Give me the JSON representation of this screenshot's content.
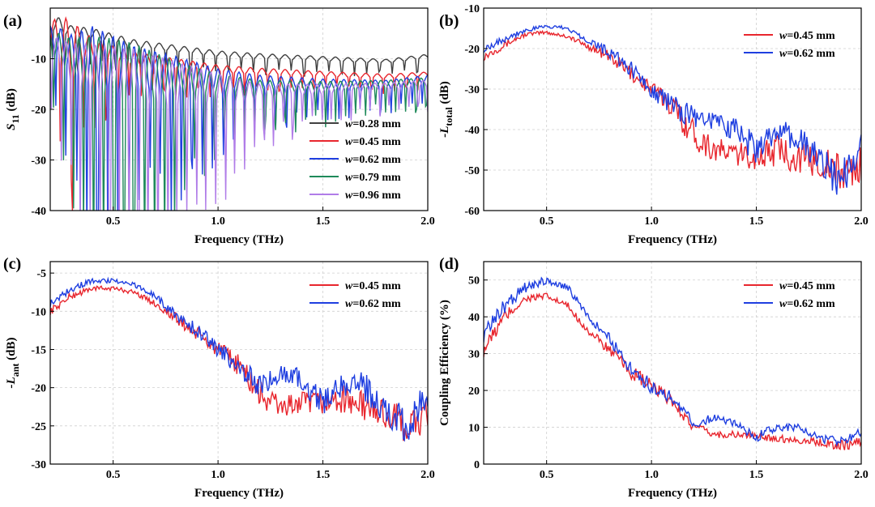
{
  "chart_data": [
    {
      "panel": "(a)",
      "type": "line",
      "xlabel": "Frequency (THz)",
      "ylabel_main": "S",
      "ylabel_sub": "11",
      "ylabel_unit": " (dB)",
      "xlim": [
        0.2,
        2.0
      ],
      "ylim": [
        -40,
        0
      ],
      "xticks": [
        0.5,
        1.0,
        1.5,
        2.0
      ],
      "xtick_labels": [
        "0.5",
        "1.0",
        "1.5",
        "2.0"
      ],
      "yticks": [
        -40,
        -30,
        -20,
        -10
      ],
      "ytick_labels": [
        "-40",
        "-30",
        "-20",
        "-10"
      ],
      "legend_position": "bottom-right",
      "grid": true,
      "series": [
        {
          "name": "=0.28 mm",
          "color": "#404040",
          "x": [
            0.2,
            0.25,
            0.3,
            0.4,
            0.5,
            0.6,
            0.8,
            1.0,
            1.2,
            1.5,
            1.8,
            2.0
          ],
          "y": [
            -3,
            -3.5,
            -4.5,
            -5,
            -6,
            -7,
            -8,
            -9,
            -9.5,
            -10,
            -10.5,
            -9.5
          ],
          "osc_amp": [
            6,
            6,
            4,
            4,
            3.5,
            3,
            2.5,
            2.2,
            2,
            1.8,
            1.5,
            1.5
          ],
          "osc_period": 0.06
        },
        {
          "name": "=0.45 mm",
          "color": "#e8262e",
          "x": [
            0.2,
            0.25,
            0.3,
            0.4,
            0.5,
            0.6,
            0.8,
            1.0,
            1.2,
            1.5,
            1.8,
            2.0
          ],
          "y": [
            -5,
            -6,
            -7,
            -8,
            -9,
            -10,
            -11,
            -12,
            -12.5,
            -13,
            -13.5,
            -13
          ],
          "osc_amp": [
            9,
            18,
            18,
            8,
            6,
            5,
            4,
            3,
            2.5,
            2,
            1.8,
            1.5
          ],
          "osc_period": 0.055
        },
        {
          "name": "=0.62 mm",
          "color": "#1f3fe0",
          "x": [
            0.2,
            0.25,
            0.3,
            0.4,
            0.5,
            0.6,
            0.8,
            1.0,
            1.2,
            1.5,
            1.8,
            2.0
          ],
          "y": [
            -6,
            -7,
            -9,
            -10,
            -11,
            -12,
            -13,
            -14,
            -14.5,
            -15,
            -15,
            -14
          ],
          "osc_amp": [
            10,
            12,
            15,
            26,
            22,
            18,
            14,
            8,
            5,
            4,
            3,
            3
          ],
          "osc_period": 0.05
        },
        {
          "name": "=0.79 mm",
          "color": "#1e8a5a",
          "x": [
            0.2,
            0.25,
            0.3,
            0.4,
            0.5,
            0.6,
            0.8,
            1.0,
            1.2,
            1.5,
            1.8,
            2.0
          ],
          "y": [
            -7,
            -8,
            -10,
            -11,
            -12,
            -13,
            -14,
            -15,
            -15.5,
            -15.5,
            -15,
            -14.5
          ],
          "osc_amp": [
            10,
            12,
            16,
            22,
            24,
            24,
            14,
            8,
            5,
            4,
            3,
            3
          ],
          "osc_period": 0.048
        },
        {
          "name": "=0.96 mm",
          "color": "#b07ce8",
          "x": [
            0.2,
            0.25,
            0.3,
            0.4,
            0.5,
            0.6,
            0.8,
            1.0,
            1.2,
            1.5,
            1.8,
            2.0
          ],
          "y": [
            -8,
            -9,
            -11,
            -12,
            -13,
            -14,
            -15,
            -16,
            -16.5,
            -16,
            -15.5,
            -15
          ],
          "osc_amp": [
            10,
            12,
            16,
            20,
            22,
            24,
            18,
            12,
            6,
            4,
            3,
            3
          ],
          "osc_period": 0.046
        }
      ]
    },
    {
      "panel": "(b)",
      "type": "line",
      "xlabel": "Frequency (THz)",
      "ylabel_main": "-L",
      "ylabel_sub": "total",
      "ylabel_unit": " (dB)",
      "xlim": [
        0.2,
        2.0
      ],
      "ylim": [
        -60,
        -10
      ],
      "xticks": [
        0.5,
        1.0,
        1.5,
        2.0
      ],
      "xtick_labels": [
        "0.5",
        "1.0",
        "1.5",
        "2.0"
      ],
      "yticks": [
        -60,
        -50,
        -40,
        -30,
        -20,
        -10
      ],
      "ytick_labels": [
        "-60",
        "-50",
        "-40",
        "-30",
        "-20",
        "-10"
      ],
      "legend_position": "top-right",
      "grid": true,
      "series": [
        {
          "name": "=0.45 mm",
          "color": "#e8262e",
          "x": [
            0.2,
            0.3,
            0.4,
            0.5,
            0.6,
            0.7,
            0.8,
            0.9,
            1.0,
            1.1,
            1.2,
            1.3,
            1.4,
            1.5,
            1.6,
            1.7,
            1.8,
            1.9,
            2.0
          ],
          "y": [
            -22,
            -19,
            -16.5,
            -16,
            -17,
            -19.5,
            -22,
            -26,
            -30,
            -34,
            -41,
            -45,
            -46,
            -47,
            -45,
            -47,
            -48,
            -51,
            -49
          ],
          "noise": [
            1,
            1,
            0.5,
            0.5,
            0.5,
            0.8,
            1.5,
            2,
            2,
            3,
            4,
            3,
            3,
            3,
            4,
            4,
            4,
            5,
            5
          ]
        },
        {
          "name": "=0.62 mm",
          "color": "#1f3fe0",
          "x": [
            0.2,
            0.3,
            0.4,
            0.5,
            0.6,
            0.7,
            0.8,
            0.9,
            1.0,
            1.1,
            1.2,
            1.3,
            1.4,
            1.5,
            1.6,
            1.7,
            1.8,
            1.9,
            2.0
          ],
          "y": [
            -20,
            -17.5,
            -15.5,
            -14.5,
            -15,
            -18,
            -21,
            -25,
            -30,
            -34,
            -37,
            -38,
            -40,
            -45,
            -41,
            -42,
            -48,
            -52,
            -45
          ],
          "noise": [
            1,
            1,
            0.5,
            0.5,
            0.5,
            0.8,
            1.5,
            2,
            2,
            3,
            3,
            2,
            3,
            4,
            3,
            4,
            4,
            5,
            4
          ]
        }
      ]
    },
    {
      "panel": "(c)",
      "type": "line",
      "xlabel": "Frequency (THz)",
      "ylabel_main": "-L",
      "ylabel_sub": "ant",
      "ylabel_unit": " (dB)",
      "xlim": [
        0.2,
        2.0
      ],
      "ylim": [
        -30,
        -3.5
      ],
      "xticks": [
        0.5,
        1.0,
        1.5,
        2.0
      ],
      "xtick_labels": [
        "0.5",
        "1.0",
        "1.5",
        "2.0"
      ],
      "yticks": [
        -30,
        -25,
        -20,
        -15,
        -10,
        -5
      ],
      "ytick_labels": [
        "-30",
        "-25",
        "-20",
        "-15",
        "-10",
        "-5"
      ],
      "legend_position": "top-right",
      "grid": true,
      "series": [
        {
          "name": "=0.45 mm",
          "color": "#e8262e",
          "x": [
            0.2,
            0.3,
            0.4,
            0.5,
            0.6,
            0.7,
            0.8,
            0.9,
            1.0,
            1.1,
            1.2,
            1.3,
            1.4,
            1.5,
            1.6,
            1.7,
            1.8,
            1.9,
            2.0
          ],
          "y": [
            -10,
            -8,
            -7,
            -7,
            -7.5,
            -9,
            -11,
            -13,
            -15,
            -17,
            -21,
            -22.5,
            -22,
            -22,
            -21.5,
            -22.5,
            -23.5,
            -25,
            -24
          ],
          "noise": [
            0.5,
            0.5,
            0.3,
            0.3,
            0.3,
            0.4,
            0.8,
            1,
            1,
            1.5,
            2,
            1.5,
            1.5,
            1.5,
            1.8,
            2,
            2,
            2.5,
            2.5
          ]
        },
        {
          "name": "=0.62 mm",
          "color": "#1f3fe0",
          "x": [
            0.2,
            0.3,
            0.4,
            0.5,
            0.6,
            0.7,
            0.8,
            0.9,
            1.0,
            1.1,
            1.2,
            1.3,
            1.4,
            1.5,
            1.6,
            1.7,
            1.8,
            1.9,
            2.0
          ],
          "y": [
            -9,
            -7,
            -6,
            -6,
            -6.5,
            -8,
            -10.5,
            -12.5,
            -15,
            -17,
            -20,
            -18,
            -19,
            -22,
            -19.5,
            -20,
            -23,
            -25,
            -21
          ],
          "noise": [
            0.5,
            0.5,
            0.3,
            0.3,
            0.3,
            0.4,
            0.8,
            1,
            1,
            1.5,
            1.5,
            1,
            1.5,
            2,
            1.5,
            2,
            2,
            2.5,
            2
          ]
        }
      ]
    },
    {
      "panel": "(d)",
      "type": "line",
      "xlabel": "Frequency (THz)",
      "ylabel_main": "Coupling Efficiency (%)",
      "ylabel_sub": "",
      "ylabel_unit": "",
      "xlim": [
        0.2,
        2.0
      ],
      "ylim": [
        0,
        55
      ],
      "xticks": [
        0.5,
        1.0,
        1.5,
        2.0
      ],
      "xtick_labels": [
        "0.5",
        "1.0",
        "1.5",
        "2.0"
      ],
      "yticks": [
        0,
        10,
        20,
        30,
        40,
        50
      ],
      "ytick_labels": [
        "0",
        "10",
        "20",
        "30",
        "40",
        "50"
      ],
      "legend_position": "top-right",
      "grid": true,
      "series": [
        {
          "name": "=0.45 mm",
          "color": "#e8262e",
          "x": [
            0.2,
            0.3,
            0.4,
            0.5,
            0.6,
            0.7,
            0.8,
            0.9,
            1.0,
            1.1,
            1.2,
            1.3,
            1.4,
            1.5,
            1.6,
            1.7,
            1.8,
            1.9,
            2.0
          ],
          "y": [
            31,
            40,
            45,
            45.5,
            43,
            36,
            31,
            25,
            21,
            17,
            10,
            8,
            8,
            7.5,
            7,
            6.5,
            6,
            5,
            6
          ],
          "noise": [
            2,
            2,
            1,
            1,
            1,
            1,
            1.5,
            2,
            2,
            1.5,
            1.5,
            1,
            1,
            1,
            1,
            1,
            1,
            1.5,
            1.5
          ]
        },
        {
          "name": "=0.62 mm",
          "color": "#1f3fe0",
          "x": [
            0.2,
            0.3,
            0.4,
            0.5,
            0.6,
            0.7,
            0.8,
            0.9,
            1.0,
            1.1,
            1.2,
            1.3,
            1.4,
            1.5,
            1.6,
            1.7,
            1.8,
            1.9,
            2.0
          ],
          "y": [
            35,
            43,
            48,
            50,
            48,
            40,
            34,
            26,
            21,
            18,
            11,
            12.5,
            11,
            7.5,
            10,
            10,
            7,
            6,
            9
          ],
          "noise": [
            2,
            2,
            1.5,
            1,
            1,
            1,
            1.5,
            2,
            2,
            1.5,
            1.5,
            1,
            1,
            1.5,
            1,
            1,
            1,
            1.5,
            1.5
          ]
        }
      ]
    }
  ]
}
